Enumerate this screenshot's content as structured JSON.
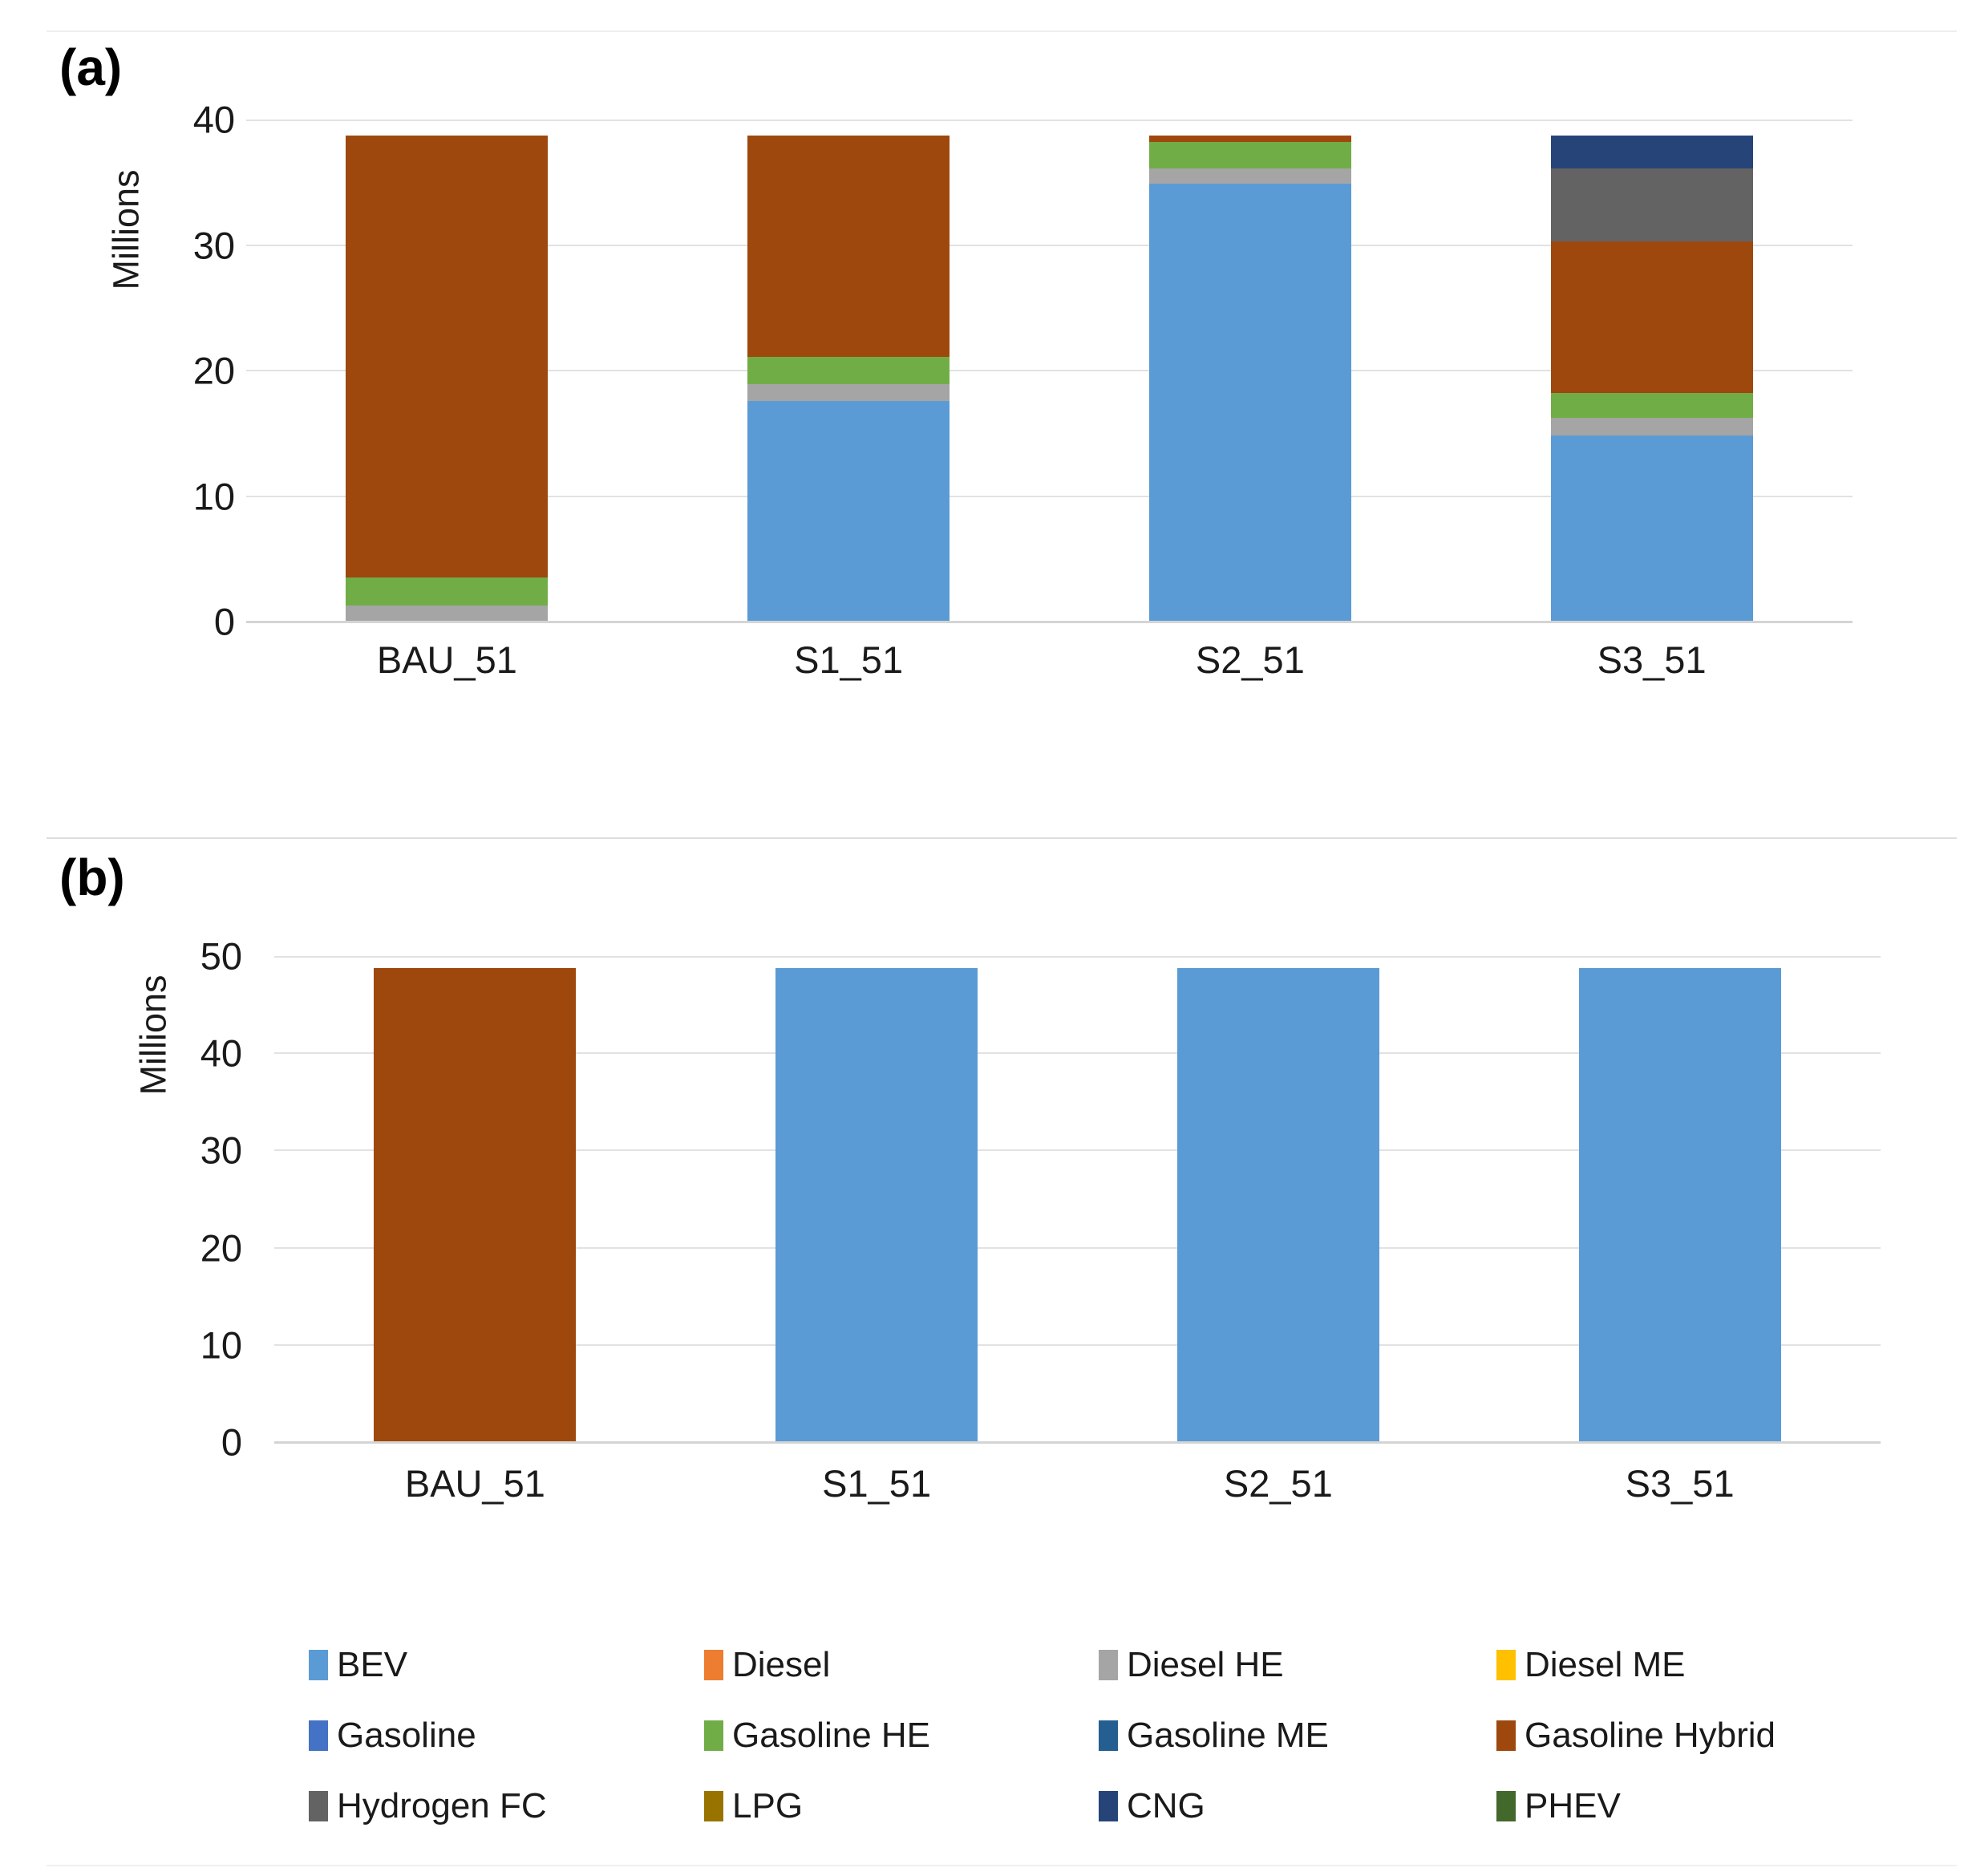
{
  "figure": {
    "panels": [
      {
        "label": "(a)",
        "y_axis_title": "Millions"
      },
      {
        "label": "(b)",
        "y_axis_title": "Millions"
      }
    ]
  },
  "legend": {
    "items": [
      {
        "label": "BEV",
        "color": "#5B9BD5"
      },
      {
        "label": "Diesel",
        "color": "#ED7D31"
      },
      {
        "label": "Diesel HE",
        "color": "#A5A5A5"
      },
      {
        "label": "Diesel ME",
        "color": "#FFC000"
      },
      {
        "label": "Gasoline",
        "color": "#4472C4"
      },
      {
        "label": "Gasoline HE",
        "color": "#70AD47"
      },
      {
        "label": "Gasoline ME",
        "color": "#255E91"
      },
      {
        "label": "Gasoline Hybrid",
        "color": "#9E480E"
      },
      {
        "label": "Hydrogen FC",
        "color": "#636363"
      },
      {
        "label": "LPG",
        "color": "#997300"
      },
      {
        "label": "CNG",
        "color": "#264478"
      },
      {
        "label": "PHEV",
        "color": "#43682B"
      }
    ]
  },
  "chart_data": [
    {
      "type": "bar",
      "stacked": true,
      "panel": "(a)",
      "ylabel": "Millions",
      "ylim": [
        0,
        40
      ],
      "yticks": [
        0,
        10,
        20,
        30,
        40
      ],
      "grid": true,
      "legend_position": "bottom-shared",
      "categories": [
        "BAU_51",
        "S1_51",
        "S2_51",
        "S3_51"
      ],
      "series": [
        {
          "name": "BEV",
          "color": "#5B9BD5",
          "values": [
            0,
            17.6,
            34.9,
            14.8
          ]
        },
        {
          "name": "Diesel",
          "color": "#ED7D31",
          "values": [
            0,
            0,
            0,
            0
          ]
        },
        {
          "name": "Diesel HE",
          "color": "#A5A5A5",
          "values": [
            1.3,
            1.3,
            1.2,
            1.4
          ]
        },
        {
          "name": "Diesel ME",
          "color": "#FFC000",
          "values": [
            0,
            0,
            0,
            0
          ]
        },
        {
          "name": "Gasoline",
          "color": "#4472C4",
          "values": [
            0,
            0,
            0,
            0
          ]
        },
        {
          "name": "Gasoline HE",
          "color": "#70AD47",
          "values": [
            2.2,
            2.2,
            2.1,
            2.0
          ]
        },
        {
          "name": "Gasoline ME",
          "color": "#255E91",
          "values": [
            0,
            0,
            0,
            0
          ]
        },
        {
          "name": "Gasoline Hybrid",
          "color": "#9E480E",
          "values": [
            35.2,
            17.6,
            0.5,
            12.1
          ]
        },
        {
          "name": "Hydrogen FC",
          "color": "#636363",
          "values": [
            0,
            0,
            0,
            5.8
          ]
        },
        {
          "name": "LPG",
          "color": "#997300",
          "values": [
            0,
            0,
            0,
            0
          ]
        },
        {
          "name": "CNG",
          "color": "#264478",
          "values": [
            0,
            0,
            0,
            2.6
          ]
        },
        {
          "name": "PHEV",
          "color": "#43682B",
          "values": [
            0,
            0,
            0,
            0
          ]
        }
      ]
    },
    {
      "type": "bar",
      "stacked": true,
      "panel": "(b)",
      "ylabel": "Millions",
      "ylim": [
        0,
        50
      ],
      "yticks": [
        0,
        10,
        20,
        30,
        40,
        50
      ],
      "grid": true,
      "legend_position": "bottom-shared",
      "categories": [
        "BAU_51",
        "S1_51",
        "S2_51",
        "S3_51"
      ],
      "series": [
        {
          "name": "BEV",
          "color": "#5B9BD5",
          "values": [
            0,
            48.8,
            48.8,
            48.8
          ]
        },
        {
          "name": "Diesel",
          "color": "#ED7D31",
          "values": [
            0,
            0,
            0,
            0
          ]
        },
        {
          "name": "Diesel HE",
          "color": "#A5A5A5",
          "values": [
            0,
            0,
            0,
            0
          ]
        },
        {
          "name": "Diesel ME",
          "color": "#FFC000",
          "values": [
            0,
            0,
            0,
            0
          ]
        },
        {
          "name": "Gasoline",
          "color": "#4472C4",
          "values": [
            0,
            0,
            0,
            0
          ]
        },
        {
          "name": "Gasoline HE",
          "color": "#70AD47",
          "values": [
            0,
            0,
            0,
            0
          ]
        },
        {
          "name": "Gasoline ME",
          "color": "#255E91",
          "values": [
            0,
            0,
            0,
            0
          ]
        },
        {
          "name": "Gasoline Hybrid",
          "color": "#9E480E",
          "values": [
            48.8,
            0,
            0,
            0
          ]
        },
        {
          "name": "Hydrogen FC",
          "color": "#636363",
          "values": [
            0,
            0,
            0,
            0
          ]
        },
        {
          "name": "LPG",
          "color": "#997300",
          "values": [
            0,
            0,
            0,
            0
          ]
        },
        {
          "name": "CNG",
          "color": "#264478",
          "values": [
            0,
            0,
            0,
            0
          ]
        },
        {
          "name": "PHEV",
          "color": "#43682B",
          "values": [
            0,
            0,
            0,
            0
          ]
        }
      ]
    }
  ]
}
